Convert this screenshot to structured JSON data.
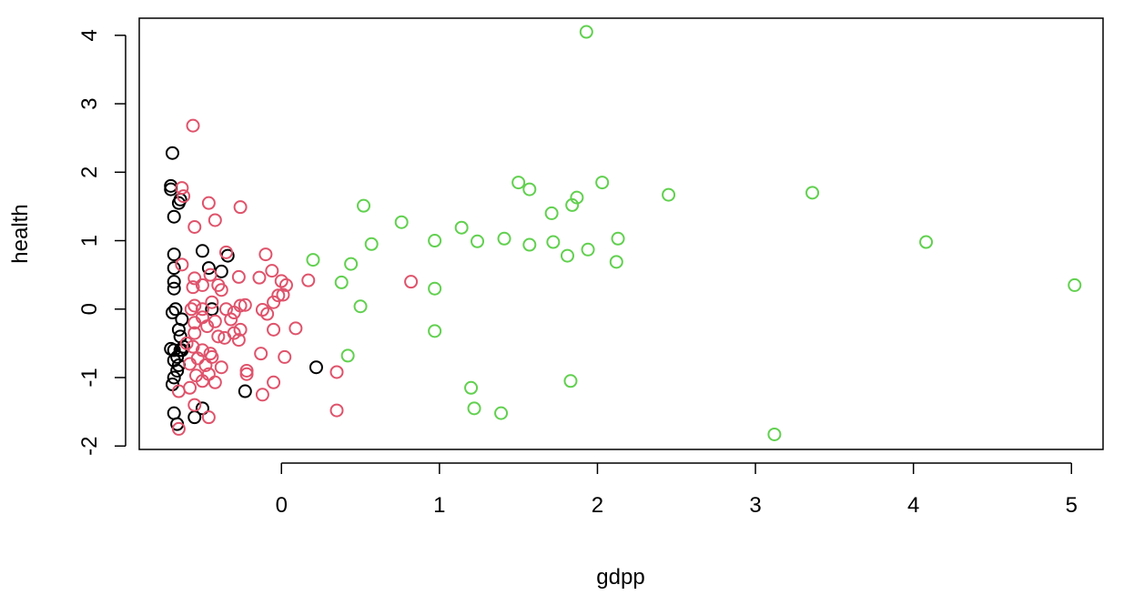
{
  "chart_data": {
    "type": "scatter",
    "xlabel": "gdpp",
    "ylabel": "health",
    "xlim": [
      -0.9,
      5.2
    ],
    "ylim": [
      -2.05,
      4.25
    ],
    "x_ticks": [
      0,
      1,
      2,
      3,
      4,
      5
    ],
    "y_ticks": [
      -2,
      -1,
      0,
      1,
      2,
      3,
      4
    ],
    "x_tick_labels": [
      "0",
      "1",
      "2",
      "3",
      "4",
      "5"
    ],
    "y_tick_labels": [
      "-2",
      "-1",
      "0",
      "1",
      "2",
      "3",
      "4"
    ],
    "marker": "open-circle",
    "grid": false,
    "legend": "none",
    "colors": [
      "#000000",
      "#DF536B",
      "#61D04F"
    ],
    "series": [
      {
        "color": "#000000",
        "points": [
          [
            -0.69,
            2.28
          ],
          [
            -0.7,
            1.8
          ],
          [
            -0.7,
            1.75
          ],
          [
            -0.65,
            1.55
          ],
          [
            -0.64,
            1.6
          ],
          [
            -0.68,
            1.35
          ],
          [
            -0.68,
            0.8
          ],
          [
            -0.68,
            0.6
          ],
          [
            -0.68,
            0.4
          ],
          [
            -0.68,
            0.3
          ],
          [
            -0.5,
            0.85
          ],
          [
            -0.46,
            0.6
          ],
          [
            -0.38,
            0.55
          ],
          [
            -0.34,
            0.78
          ],
          [
            -0.44,
            0.0
          ],
          [
            -0.69,
            -0.05
          ],
          [
            -0.67,
            0.0
          ],
          [
            -0.63,
            -0.15
          ],
          [
            -0.65,
            -0.3
          ],
          [
            -0.64,
            -0.4
          ],
          [
            -0.7,
            -0.58
          ],
          [
            -0.68,
            -0.6
          ],
          [
            -0.66,
            -0.7
          ],
          [
            -0.68,
            -0.75
          ],
          [
            -0.65,
            -0.82
          ],
          [
            -0.66,
            -0.9
          ],
          [
            -0.68,
            -1.0
          ],
          [
            -0.69,
            -1.1
          ],
          [
            -0.62,
            -0.55
          ],
          [
            -0.63,
            -0.6
          ],
          [
            -0.64,
            -0.6
          ],
          [
            -0.68,
            -1.52
          ],
          [
            -0.66,
            -1.68
          ],
          [
            -0.5,
            -1.45
          ],
          [
            -0.55,
            -1.58
          ],
          [
            0.22,
            -0.85
          ],
          [
            -0.23,
            -1.2
          ]
        ]
      },
      {
        "color": "#DF536B",
        "points": [
          [
            -0.56,
            2.68
          ],
          [
            -0.63,
            1.77
          ],
          [
            -0.62,
            1.65
          ],
          [
            -0.46,
            1.55
          ],
          [
            -0.42,
            1.3
          ],
          [
            -0.55,
            1.2
          ],
          [
            -0.26,
            1.49
          ],
          [
            -0.35,
            0.83
          ],
          [
            -0.1,
            0.8
          ],
          [
            -0.63,
            0.65
          ],
          [
            -0.55,
            0.45
          ],
          [
            -0.5,
            0.35
          ],
          [
            -0.56,
            0.32
          ],
          [
            -0.45,
            0.5
          ],
          [
            -0.4,
            0.35
          ],
          [
            -0.38,
            0.28
          ],
          [
            -0.27,
            0.47
          ],
          [
            -0.14,
            0.46
          ],
          [
            -0.06,
            0.56
          ],
          [
            -0.05,
            0.1
          ],
          [
            0.0,
            0.41
          ],
          [
            0.03,
            0.35
          ],
          [
            -0.02,
            0.2
          ],
          [
            0.01,
            0.21
          ],
          [
            0.17,
            0.42
          ],
          [
            -0.55,
            0.05
          ],
          [
            -0.57,
            0.0
          ],
          [
            -0.5,
            0.0
          ],
          [
            -0.44,
            0.1
          ],
          [
            -0.35,
            0.0
          ],
          [
            -0.3,
            -0.05
          ],
          [
            -0.23,
            0.06
          ],
          [
            -0.26,
            0.05
          ],
          [
            -0.12,
            -0.01
          ],
          [
            -0.09,
            -0.07
          ],
          [
            -0.42,
            -0.18
          ],
          [
            -0.5,
            -0.12
          ],
          [
            -0.55,
            -0.2
          ],
          [
            -0.47,
            -0.25
          ],
          [
            -0.32,
            -0.15
          ],
          [
            -0.26,
            -0.3
          ],
          [
            -0.3,
            -0.35
          ],
          [
            -0.36,
            -0.42
          ],
          [
            -0.4,
            -0.4
          ],
          [
            -0.55,
            -0.35
          ],
          [
            -0.6,
            -0.5
          ],
          [
            -0.56,
            -0.55
          ],
          [
            -0.5,
            -0.6
          ],
          [
            -0.45,
            -0.65
          ],
          [
            -0.44,
            -0.7
          ],
          [
            -0.53,
            -0.72
          ],
          [
            -0.58,
            -0.8
          ],
          [
            -0.48,
            -0.82
          ],
          [
            -0.38,
            -0.85
          ],
          [
            -0.27,
            -0.45
          ],
          [
            -0.05,
            -0.3
          ],
          [
            0.09,
            -0.28
          ],
          [
            -0.13,
            -0.65
          ],
          [
            0.02,
            -0.7
          ],
          [
            -0.22,
            -0.9
          ],
          [
            -0.22,
            -0.95
          ],
          [
            -0.46,
            -0.95
          ],
          [
            -0.54,
            -0.97
          ],
          [
            -0.58,
            -1.15
          ],
          [
            -0.65,
            -1.2
          ],
          [
            -0.5,
            -1.05
          ],
          [
            -0.42,
            -1.07
          ],
          [
            -0.05,
            -1.07
          ],
          [
            -0.12,
            -1.25
          ],
          [
            -0.55,
            -1.4
          ],
          [
            -0.46,
            -1.58
          ],
          [
            -0.65,
            -1.75
          ],
          [
            0.35,
            -0.92
          ],
          [
            0.35,
            -1.48
          ],
          [
            0.82,
            0.4
          ]
        ]
      },
      {
        "color": "#61D04F",
        "points": [
          [
            1.93,
            4.05
          ],
          [
            1.5,
            1.85
          ],
          [
            1.57,
            1.75
          ],
          [
            2.03,
            1.85
          ],
          [
            3.36,
            1.7
          ],
          [
            2.45,
            1.67
          ],
          [
            1.87,
            1.63
          ],
          [
            1.84,
            1.52
          ],
          [
            0.52,
            1.51
          ],
          [
            1.71,
            1.4
          ],
          [
            0.76,
            1.27
          ],
          [
            1.14,
            1.19
          ],
          [
            0.97,
            1.0
          ],
          [
            1.24,
            0.99
          ],
          [
            1.41,
            1.03
          ],
          [
            1.57,
            0.94
          ],
          [
            1.72,
            0.98
          ],
          [
            1.94,
            0.87
          ],
          [
            2.13,
            1.03
          ],
          [
            4.08,
            0.98
          ],
          [
            0.57,
            0.95
          ],
          [
            1.81,
            0.78
          ],
          [
            2.12,
            0.69
          ],
          [
            0.2,
            0.72
          ],
          [
            0.44,
            0.66
          ],
          [
            0.38,
            0.39
          ],
          [
            0.97,
            0.3
          ],
          [
            5.02,
            0.35
          ],
          [
            0.5,
            0.04
          ],
          [
            0.97,
            -0.32
          ],
          [
            0.42,
            -0.68
          ],
          [
            1.2,
            -1.15
          ],
          [
            1.83,
            -1.05
          ],
          [
            1.22,
            -1.45
          ],
          [
            1.39,
            -1.52
          ],
          [
            3.12,
            -1.83
          ]
        ]
      }
    ]
  }
}
